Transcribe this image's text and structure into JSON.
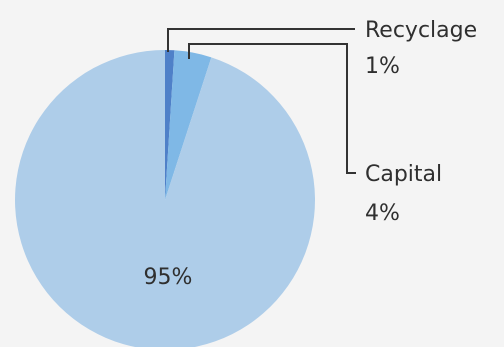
{
  "chart_data": {
    "type": "pie",
    "slices": [
      {
        "name": "Recyclage",
        "value": 1,
        "label": "1%",
        "color": "#4f80c8"
      },
      {
        "name": "Capital",
        "value": 4,
        "label": "4%",
        "color": "#7fb8e6"
      },
      {
        "name": "",
        "value": 95,
        "label": "95%",
        "color": "#aecde9"
      }
    ],
    "start_angle_deg": 0,
    "direction": "clockwise",
    "title": ""
  }
}
